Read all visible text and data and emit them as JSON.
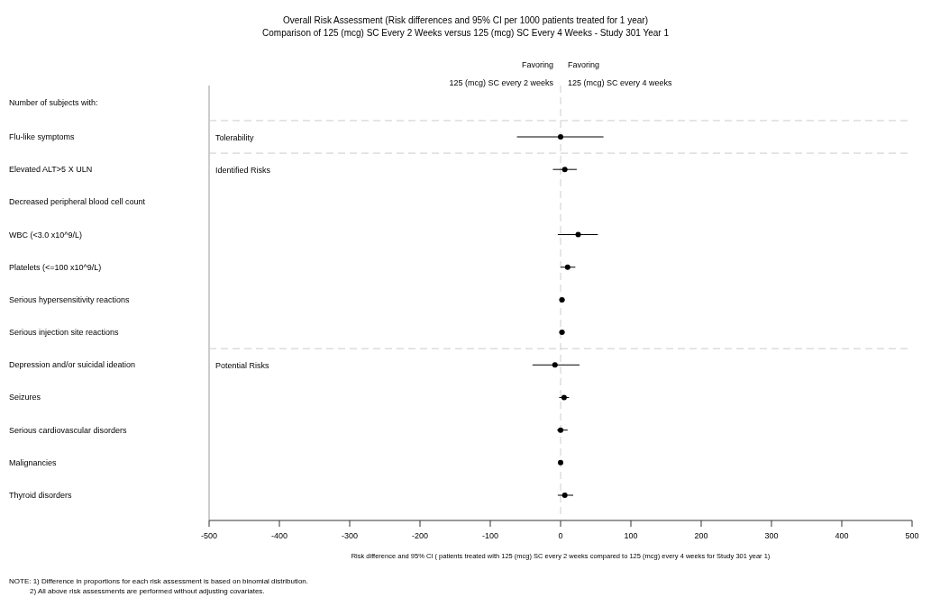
{
  "chart_data": {
    "type": "scatter",
    "orientation": "horizontal",
    "title": "Overall Risk Assessment (Risk differences and 95% CI per 1000 patients treated for 1 year)",
    "subtitle": "Comparison of 125 (mcg) SC Every 2 Weeks versus 125 (mcg) SC Every 4 Weeks - Study 301 Year 1",
    "xlabel": "Risk difference and 95% CI ( patients treated with 125 (mcg) SC every 2 weeks compared to 125 (mcg) every 4 weeks for Study 301 year 1)",
    "ylabel": "Number of subjects with:",
    "categories": [
      "Flu-like symptoms",
      "Elevated ALT>5 X ULN",
      "Decreased peripheral blood cell count",
      "WBC (<3.0 x10^9/L)",
      "Platelets (<=100 x10^9/L)",
      "Serious hypersensitivity reactions",
      "Serious injection site reactions",
      "Depression and/or suicidal ideation",
      "Seizures",
      "Serious cardiovascular disorders",
      "Malignancies",
      "Thyroid disorders"
    ],
    "series": [
      {
        "color": "#000000",
        "values": [
          0,
          6,
          null,
          25,
          10,
          2,
          2,
          -8,
          5,
          0,
          0,
          6
        ],
        "errors": [
          [
            -62,
            61
          ],
          [
            -11,
            23
          ],
          null,
          [
            -4,
            53
          ],
          [
            0,
            21
          ],
          [
            -2,
            6
          ],
          [
            -2,
            6
          ],
          [
            -40,
            27
          ],
          [
            -2,
            12
          ],
          [
            -5,
            10
          ],
          [
            -3,
            3
          ],
          [
            -4,
            18
          ]
        ]
      }
    ],
    "xlim": [
      -500,
      500
    ],
    "xticks": [
      -500,
      -400,
      -300,
      -200,
      -100,
      0,
      100,
      200,
      300,
      400,
      500
    ],
    "marker": "circle",
    "grid": false,
    "ref_lines": [
      {
        "axis": "x",
        "value": 0,
        "color": "#cccccc",
        "line_style": "dashed"
      }
    ],
    "annotations": [
      "Favoring",
      "125 (mcg) SC every 2 weeks",
      "Favoring",
      "125 (mcg) SC every 4 weeks",
      "NOTE: 1) Difference in proportions for each risk assessment is based on binomial distribution.",
      "2) All above risk assessments are performed without adjusting covariates.",
      "Tolerability",
      "Identified Risks",
      "Potential Risks"
    ]
  }
}
